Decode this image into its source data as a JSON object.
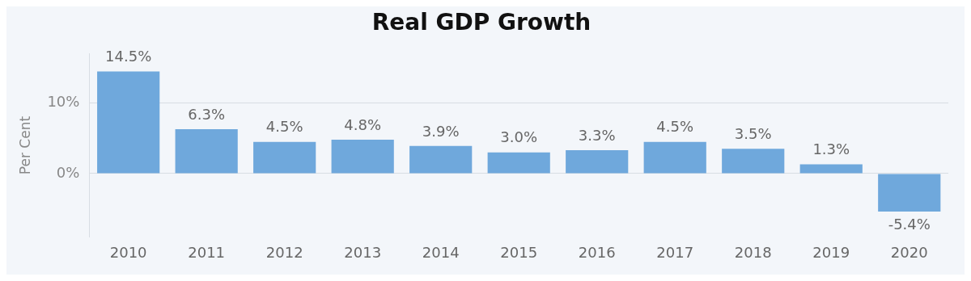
{
  "chart_data": {
    "type": "bar",
    "title": "Real GDP Growth",
    "ylabel": "Per Cent",
    "categories": [
      "2010",
      "2011",
      "2012",
      "2013",
      "2014",
      "2015",
      "2016",
      "2017",
      "2018",
      "2019",
      "2020"
    ],
    "values": [
      14.5,
      6.3,
      4.5,
      4.8,
      3.9,
      3.0,
      3.3,
      4.5,
      3.5,
      1.3,
      -5.4
    ],
    "value_labels": [
      "14.5%",
      "6.3%",
      "4.5%",
      "4.8%",
      "3.9%",
      "3.0%",
      "3.3%",
      "4.5%",
      "3.5%",
      "1.3%",
      "-5.4%"
    ],
    "color": "#6fa8dc",
    "ylim": [
      -9,
      17
    ],
    "yticks": [
      {
        "value": 0,
        "label": "0%"
      },
      {
        "value": 10,
        "label": "10%"
      }
    ],
    "grid": "y",
    "legend": false
  }
}
